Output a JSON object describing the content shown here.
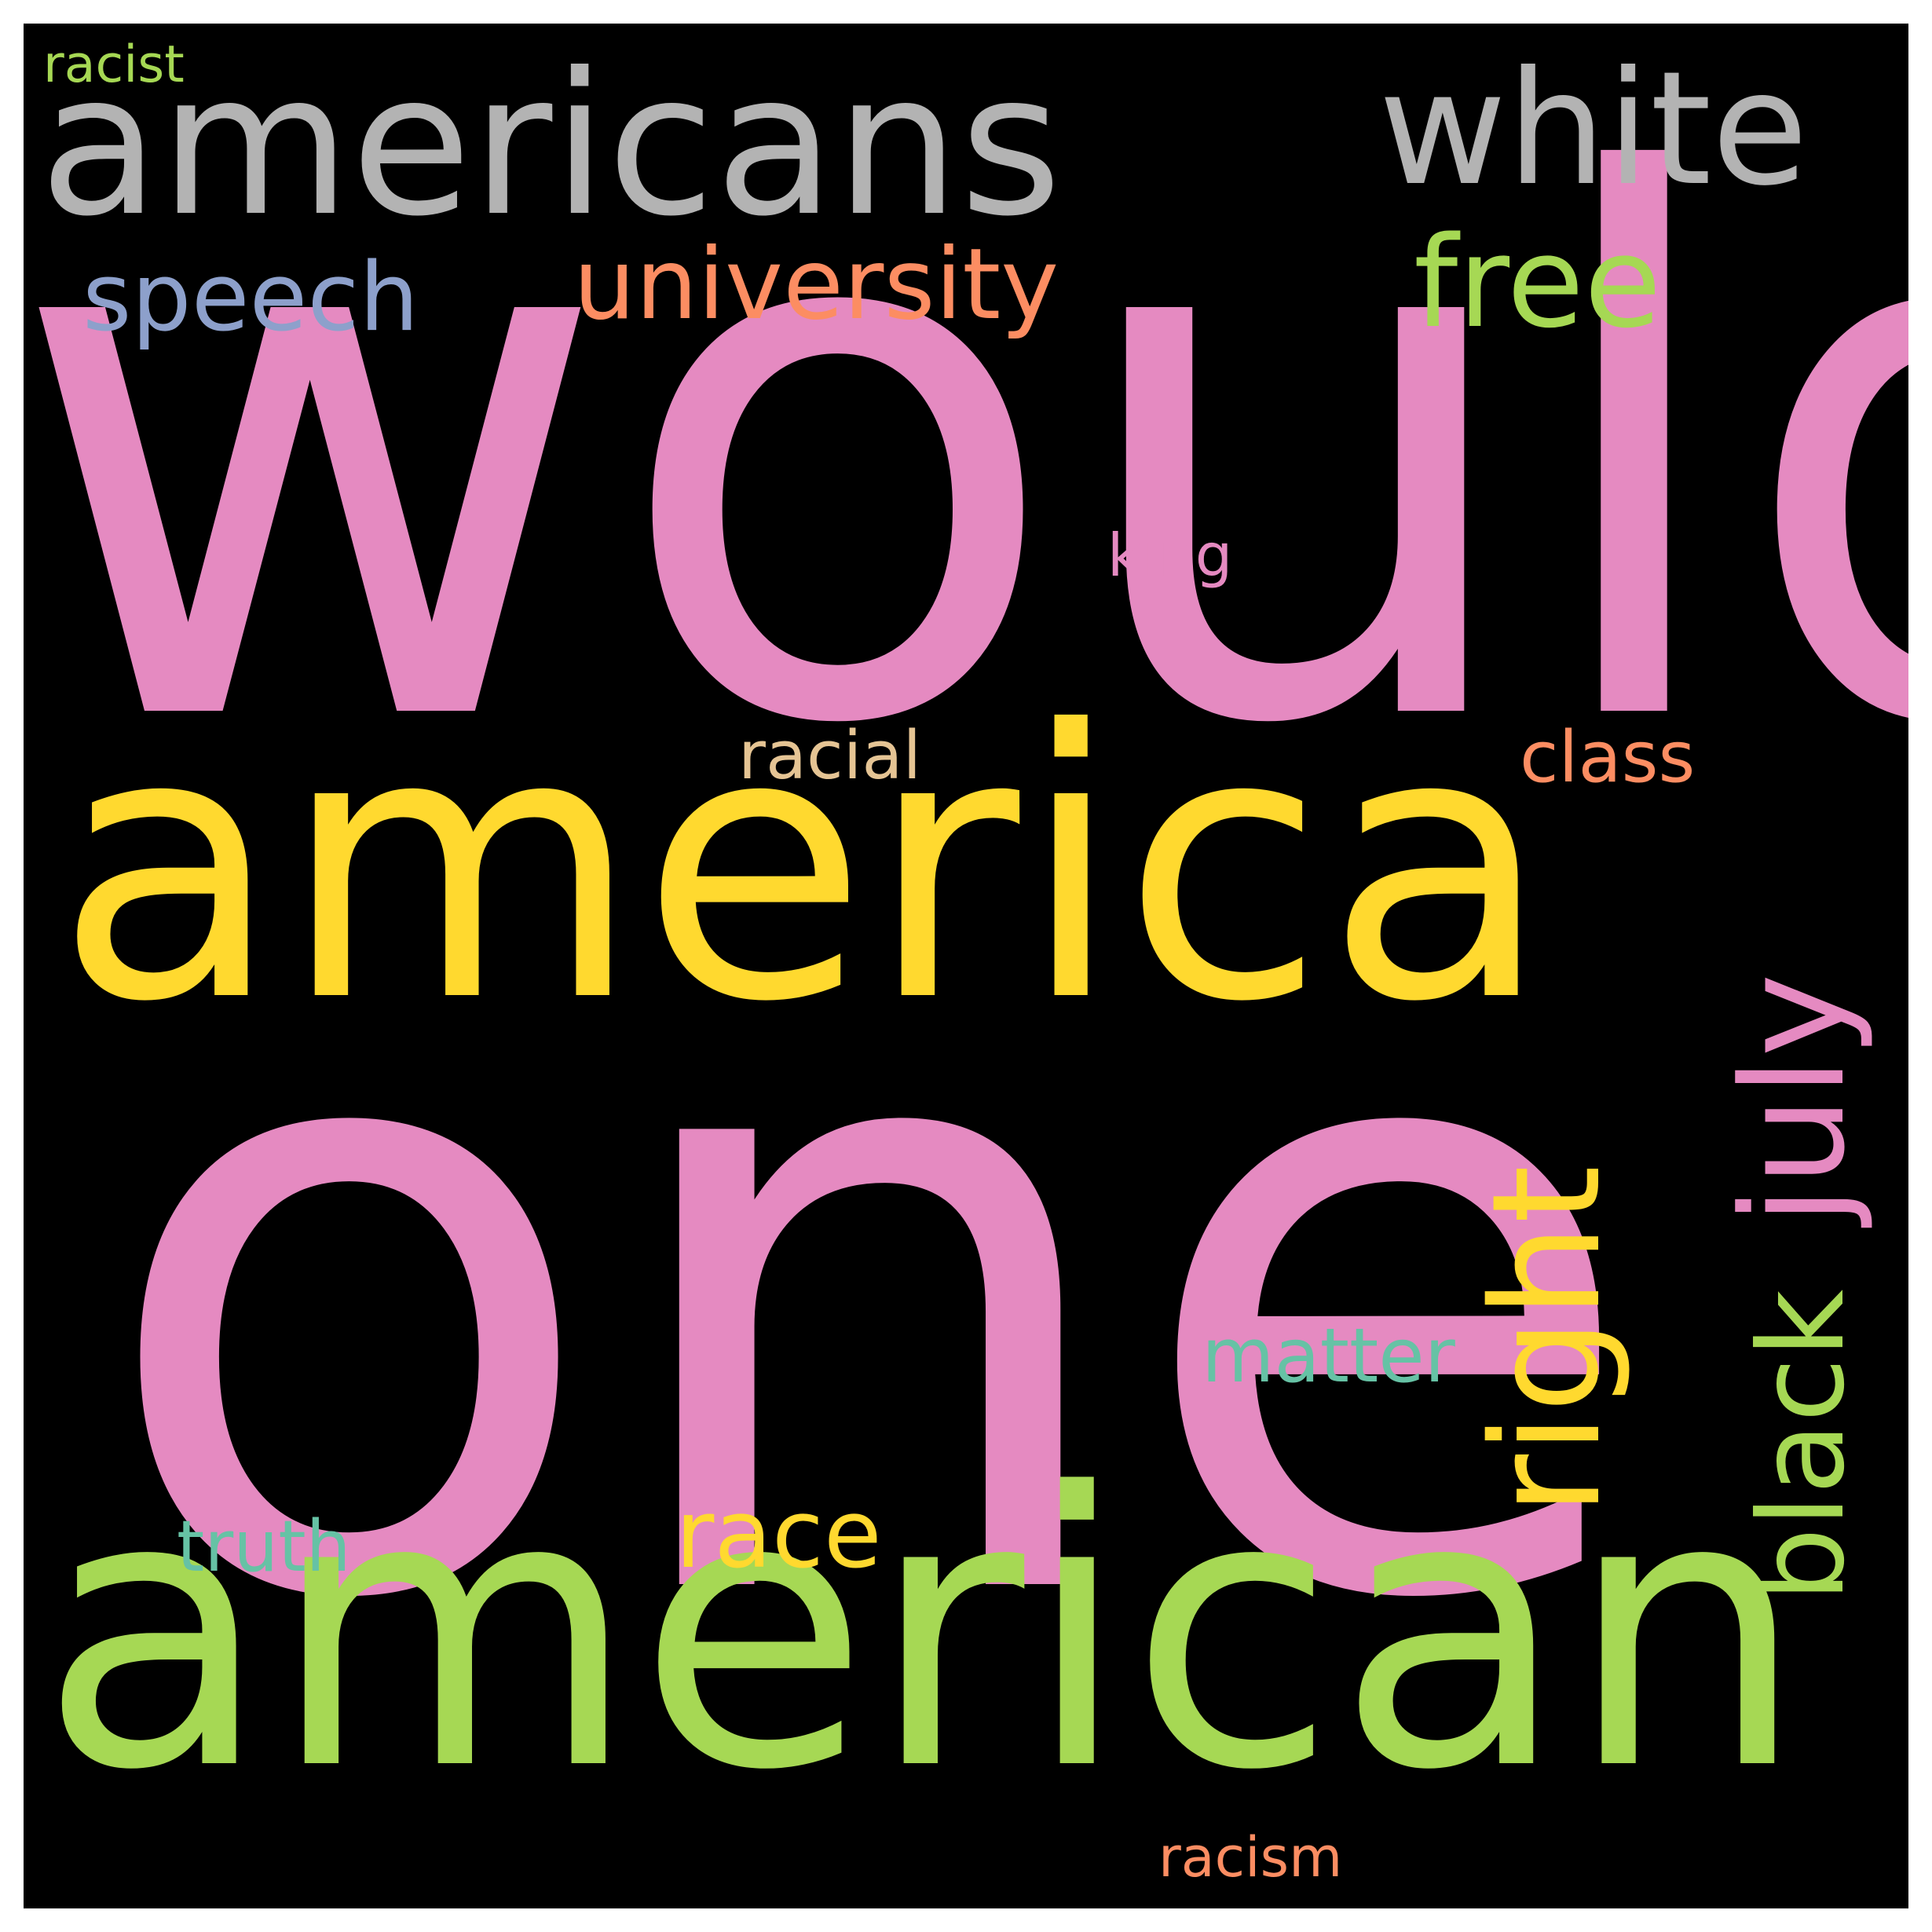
{
  "palette": {
    "background": "#000000",
    "frame": "#ffffff",
    "pink": "#e58ac1",
    "yellow": "#ffd92f",
    "green": "#a6d854",
    "gray": "#b3b3b3",
    "orange": "#fc8d62",
    "blue": "#8da0cb",
    "teal": "#66c2a5",
    "tan": "#e5c494"
  },
  "words": [
    {
      "text": "would",
      "color": "#e58ac1",
      "orientation": "horizontal"
    },
    {
      "text": "one",
      "color": "#e58ac1",
      "orientation": "horizontal"
    },
    {
      "text": "america",
      "color": "#ffd92f",
      "orientation": "horizontal"
    },
    {
      "text": "american",
      "color": "#a6d854",
      "orientation": "horizontal"
    },
    {
      "text": "americans",
      "color": "#b3b3b3",
      "orientation": "horizontal"
    },
    {
      "text": "white",
      "color": "#b3b3b3",
      "orientation": "horizontal"
    },
    {
      "text": "free",
      "color": "#a6d854",
      "orientation": "horizontal"
    },
    {
      "text": "university",
      "color": "#fc8d62",
      "orientation": "horizontal"
    },
    {
      "text": "speech",
      "color": "#8da0cb",
      "orientation": "horizontal"
    },
    {
      "text": "right",
      "color": "#ffd92f",
      "orientation": "vertical"
    },
    {
      "text": "july",
      "color": "#e58ac1",
      "orientation": "vertical"
    },
    {
      "text": "black",
      "color": "#a6d854",
      "orientation": "vertical"
    },
    {
      "text": "race",
      "color": "#ffd92f",
      "orientation": "horizontal"
    },
    {
      "text": "truth",
      "color": "#66c2a5",
      "orientation": "horizontal"
    },
    {
      "text": "matter",
      "color": "#66c2a5",
      "orientation": "horizontal"
    },
    {
      "text": "class",
      "color": "#fc8d62",
      "orientation": "horizontal"
    },
    {
      "text": "racial",
      "color": "#e5c494",
      "orientation": "horizontal"
    },
    {
      "text": "king",
      "color": "#e58ac1",
      "orientation": "horizontal"
    },
    {
      "text": "racist",
      "color": "#a6d854",
      "orientation": "horizontal"
    },
    {
      "text": "racism",
      "color": "#fc8d62",
      "orientation": "horizontal"
    }
  ]
}
